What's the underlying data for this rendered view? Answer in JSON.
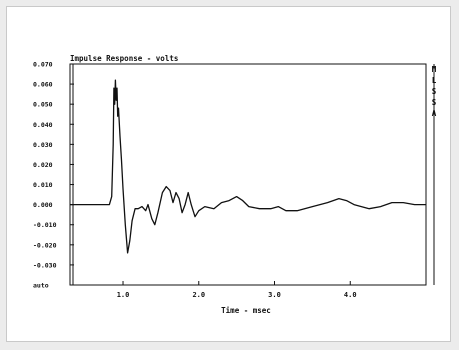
{
  "chart_data": {
    "type": "line",
    "title": "Impulse Response - volts",
    "xlabel": "Time - msec",
    "ylabel": "",
    "side_label": "MLSSA",
    "xlim": [
      0.3,
      5.0
    ],
    "ylim": [
      -0.04,
      0.07
    ],
    "x_ticks": [
      {
        "value": 1.0,
        "label": "1.0"
      },
      {
        "value": 2.0,
        "label": "2.0"
      },
      {
        "value": 3.0,
        "label": "3.0"
      },
      {
        "value": 4.0,
        "label": "4.0"
      }
    ],
    "y_ticks": [
      {
        "value": 0.07,
        "label": "0.070"
      },
      {
        "value": 0.06,
        "label": "0.060"
      },
      {
        "value": 0.05,
        "label": "0.050"
      },
      {
        "value": 0.04,
        "label": "0.040"
      },
      {
        "value": 0.03,
        "label": "0.030"
      },
      {
        "value": 0.02,
        "label": "0.020"
      },
      {
        "value": 0.01,
        "label": "0.010"
      },
      {
        "value": 0.0,
        "label": "0.000"
      },
      {
        "value": -0.01,
        "label": "-0.010"
      },
      {
        "value": -0.02,
        "label": "-0.020"
      },
      {
        "value": -0.03,
        "label": "-0.030"
      },
      {
        "value": -0.04,
        "label": "auto"
      }
    ],
    "grid": false,
    "series": [
      {
        "color": "#111111",
        "points": [
          [
            0.3,
            0.0
          ],
          [
            0.7,
            0.0
          ],
          [
            0.82,
            0.0
          ],
          [
            0.85,
            0.004
          ],
          [
            0.87,
            0.03
          ],
          [
            0.88,
            0.058
          ],
          [
            0.89,
            0.05
          ],
          [
            0.9,
            0.062
          ],
          [
            0.91,
            0.052
          ],
          [
            0.92,
            0.058
          ],
          [
            0.93,
            0.044
          ],
          [
            0.94,
            0.048
          ],
          [
            0.96,
            0.034
          ],
          [
            0.98,
            0.022
          ],
          [
            1.0,
            0.008
          ],
          [
            1.03,
            -0.01
          ],
          [
            1.06,
            -0.024
          ],
          [
            1.09,
            -0.018
          ],
          [
            1.12,
            -0.008
          ],
          [
            1.16,
            -0.002
          ],
          [
            1.2,
            -0.002
          ],
          [
            1.25,
            -0.001
          ],
          [
            1.3,
            -0.003
          ],
          [
            1.33,
            0.0
          ],
          [
            1.38,
            -0.007
          ],
          [
            1.42,
            -0.01
          ],
          [
            1.46,
            -0.004
          ],
          [
            1.52,
            0.006
          ],
          [
            1.57,
            0.009
          ],
          [
            1.62,
            0.007
          ],
          [
            1.66,
            0.001
          ],
          [
            1.7,
            0.006
          ],
          [
            1.74,
            0.003
          ],
          [
            1.78,
            -0.004
          ],
          [
            1.82,
            0.0
          ],
          [
            1.86,
            0.006
          ],
          [
            1.9,
            0.0
          ],
          [
            1.95,
            -0.006
          ],
          [
            2.0,
            -0.003
          ],
          [
            2.08,
            -0.001
          ],
          [
            2.2,
            -0.002
          ],
          [
            2.3,
            0.001
          ],
          [
            2.4,
            0.002
          ],
          [
            2.5,
            0.004
          ],
          [
            2.58,
            0.002
          ],
          [
            2.66,
            -0.001
          ],
          [
            2.8,
            -0.002
          ],
          [
            2.95,
            -0.002
          ],
          [
            3.05,
            -0.001
          ],
          [
            3.15,
            -0.003
          ],
          [
            3.3,
            -0.003
          ],
          [
            3.5,
            -0.001
          ],
          [
            3.7,
            0.001
          ],
          [
            3.85,
            0.003
          ],
          [
            3.95,
            0.002
          ],
          [
            4.05,
            0.0
          ],
          [
            4.25,
            -0.002
          ],
          [
            4.4,
            -0.001
          ],
          [
            4.55,
            0.001
          ],
          [
            4.7,
            0.001
          ],
          [
            4.85,
            0.0
          ],
          [
            5.0,
            0.0
          ]
        ]
      }
    ]
  }
}
